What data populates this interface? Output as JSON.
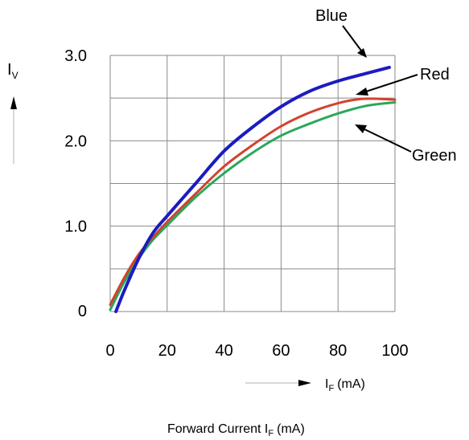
{
  "chart_data": {
    "type": "line",
    "xlabel": "Forward Current I",
    "xlabel_sub": "F",
    "xlabel_unit": "(mA)",
    "arrow_xlabel": "I",
    "arrow_xlabel_sub": "F",
    "arrow_xlabel_unit": "(mA)",
    "ylabel": "I",
    "ylabel_sub": "V",
    "xlim": [
      0,
      100
    ],
    "ylim": [
      0,
      3.0
    ],
    "x_ticks": [
      {
        "value": 0,
        "label": "0"
      },
      {
        "value": 20,
        "label": "20"
      },
      {
        "value": 40,
        "label": "40"
      },
      {
        "value": 60,
        "label": "60"
      },
      {
        "value": 80,
        "label": "80"
      },
      {
        "value": 100,
        "label": "100"
      }
    ],
    "y_ticks": [
      {
        "value": 0,
        "label": "0"
      },
      {
        "value": 1.0,
        "label": "1.0"
      },
      {
        "value": 2.0,
        "label": "2.0"
      },
      {
        "value": 3.0,
        "label": "3.0"
      }
    ],
    "grid_x": [
      0,
      20,
      40,
      60,
      80,
      100
    ],
    "grid_y": [
      0,
      0.5,
      1.0,
      1.5,
      2.0,
      2.5,
      3.0
    ],
    "grid": true,
    "series": [
      {
        "name": "Blue",
        "color": "#1c1cc0",
        "x": [
          2,
          5,
          10,
          15,
          20,
          30,
          40,
          50,
          60,
          70,
          80,
          90,
          98
        ],
        "y": [
          0.0,
          0.25,
          0.62,
          0.92,
          1.12,
          1.5,
          1.88,
          2.16,
          2.4,
          2.58,
          2.7,
          2.79,
          2.86
        ]
      },
      {
        "name": "Red",
        "color": "#d2422e",
        "x": [
          0,
          5,
          10,
          15,
          20,
          30,
          40,
          50,
          60,
          70,
          80,
          88,
          95,
          100
        ],
        "y": [
          0.08,
          0.4,
          0.67,
          0.87,
          1.05,
          1.38,
          1.7,
          1.95,
          2.17,
          2.33,
          2.44,
          2.49,
          2.49,
          2.48
        ]
      },
      {
        "name": "Green",
        "color": "#2aa85a",
        "x": [
          0,
          5,
          10,
          15,
          20,
          30,
          40,
          50,
          60,
          70,
          80,
          90,
          100
        ],
        "y": [
          0.02,
          0.35,
          0.62,
          0.84,
          1.01,
          1.34,
          1.62,
          1.86,
          2.06,
          2.2,
          2.32,
          2.41,
          2.45
        ]
      }
    ]
  }
}
